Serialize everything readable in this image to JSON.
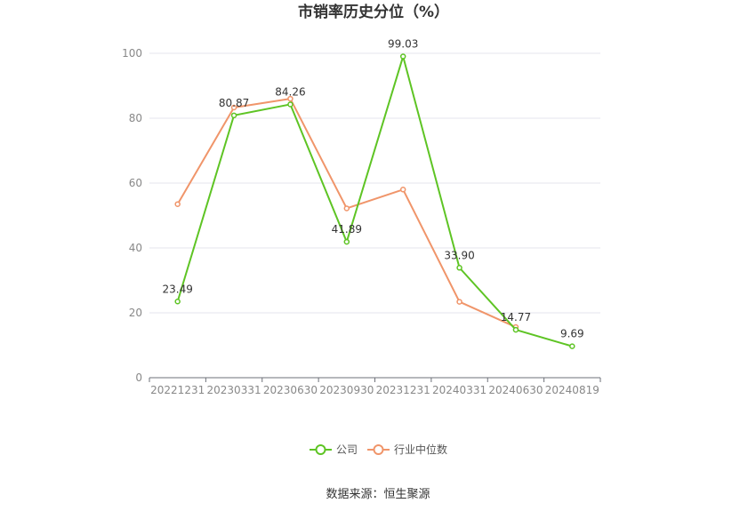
{
  "chart_data": {
    "type": "line",
    "title": "市销率历史分位（%）",
    "categories": [
      "20221231",
      "20230331",
      "20230630",
      "20230930",
      "20231231",
      "20240331",
      "20240630",
      "20240819"
    ],
    "ylim": [
      0,
      100
    ],
    "yticks": [
      0,
      20,
      40,
      60,
      80,
      100
    ],
    "grid": true,
    "legend_position": "bottom",
    "series": [
      {
        "name": "公司",
        "color": "#5ec424",
        "values": [
          23.49,
          80.87,
          84.26,
          41.89,
          99.03,
          33.9,
          14.77,
          9.69
        ],
        "labels": [
          "23.49",
          "80.87",
          "84.26",
          "41.89",
          "99.03",
          "33.90",
          "14.77",
          "9.69"
        ]
      },
      {
        "name": "行业中位数",
        "color": "#f0956a",
        "values": [
          53.5,
          83.3,
          86.0,
          52.2,
          58.0,
          23.4,
          15.6,
          null
        ]
      }
    ],
    "source": "数据来源：恒生聚源"
  }
}
